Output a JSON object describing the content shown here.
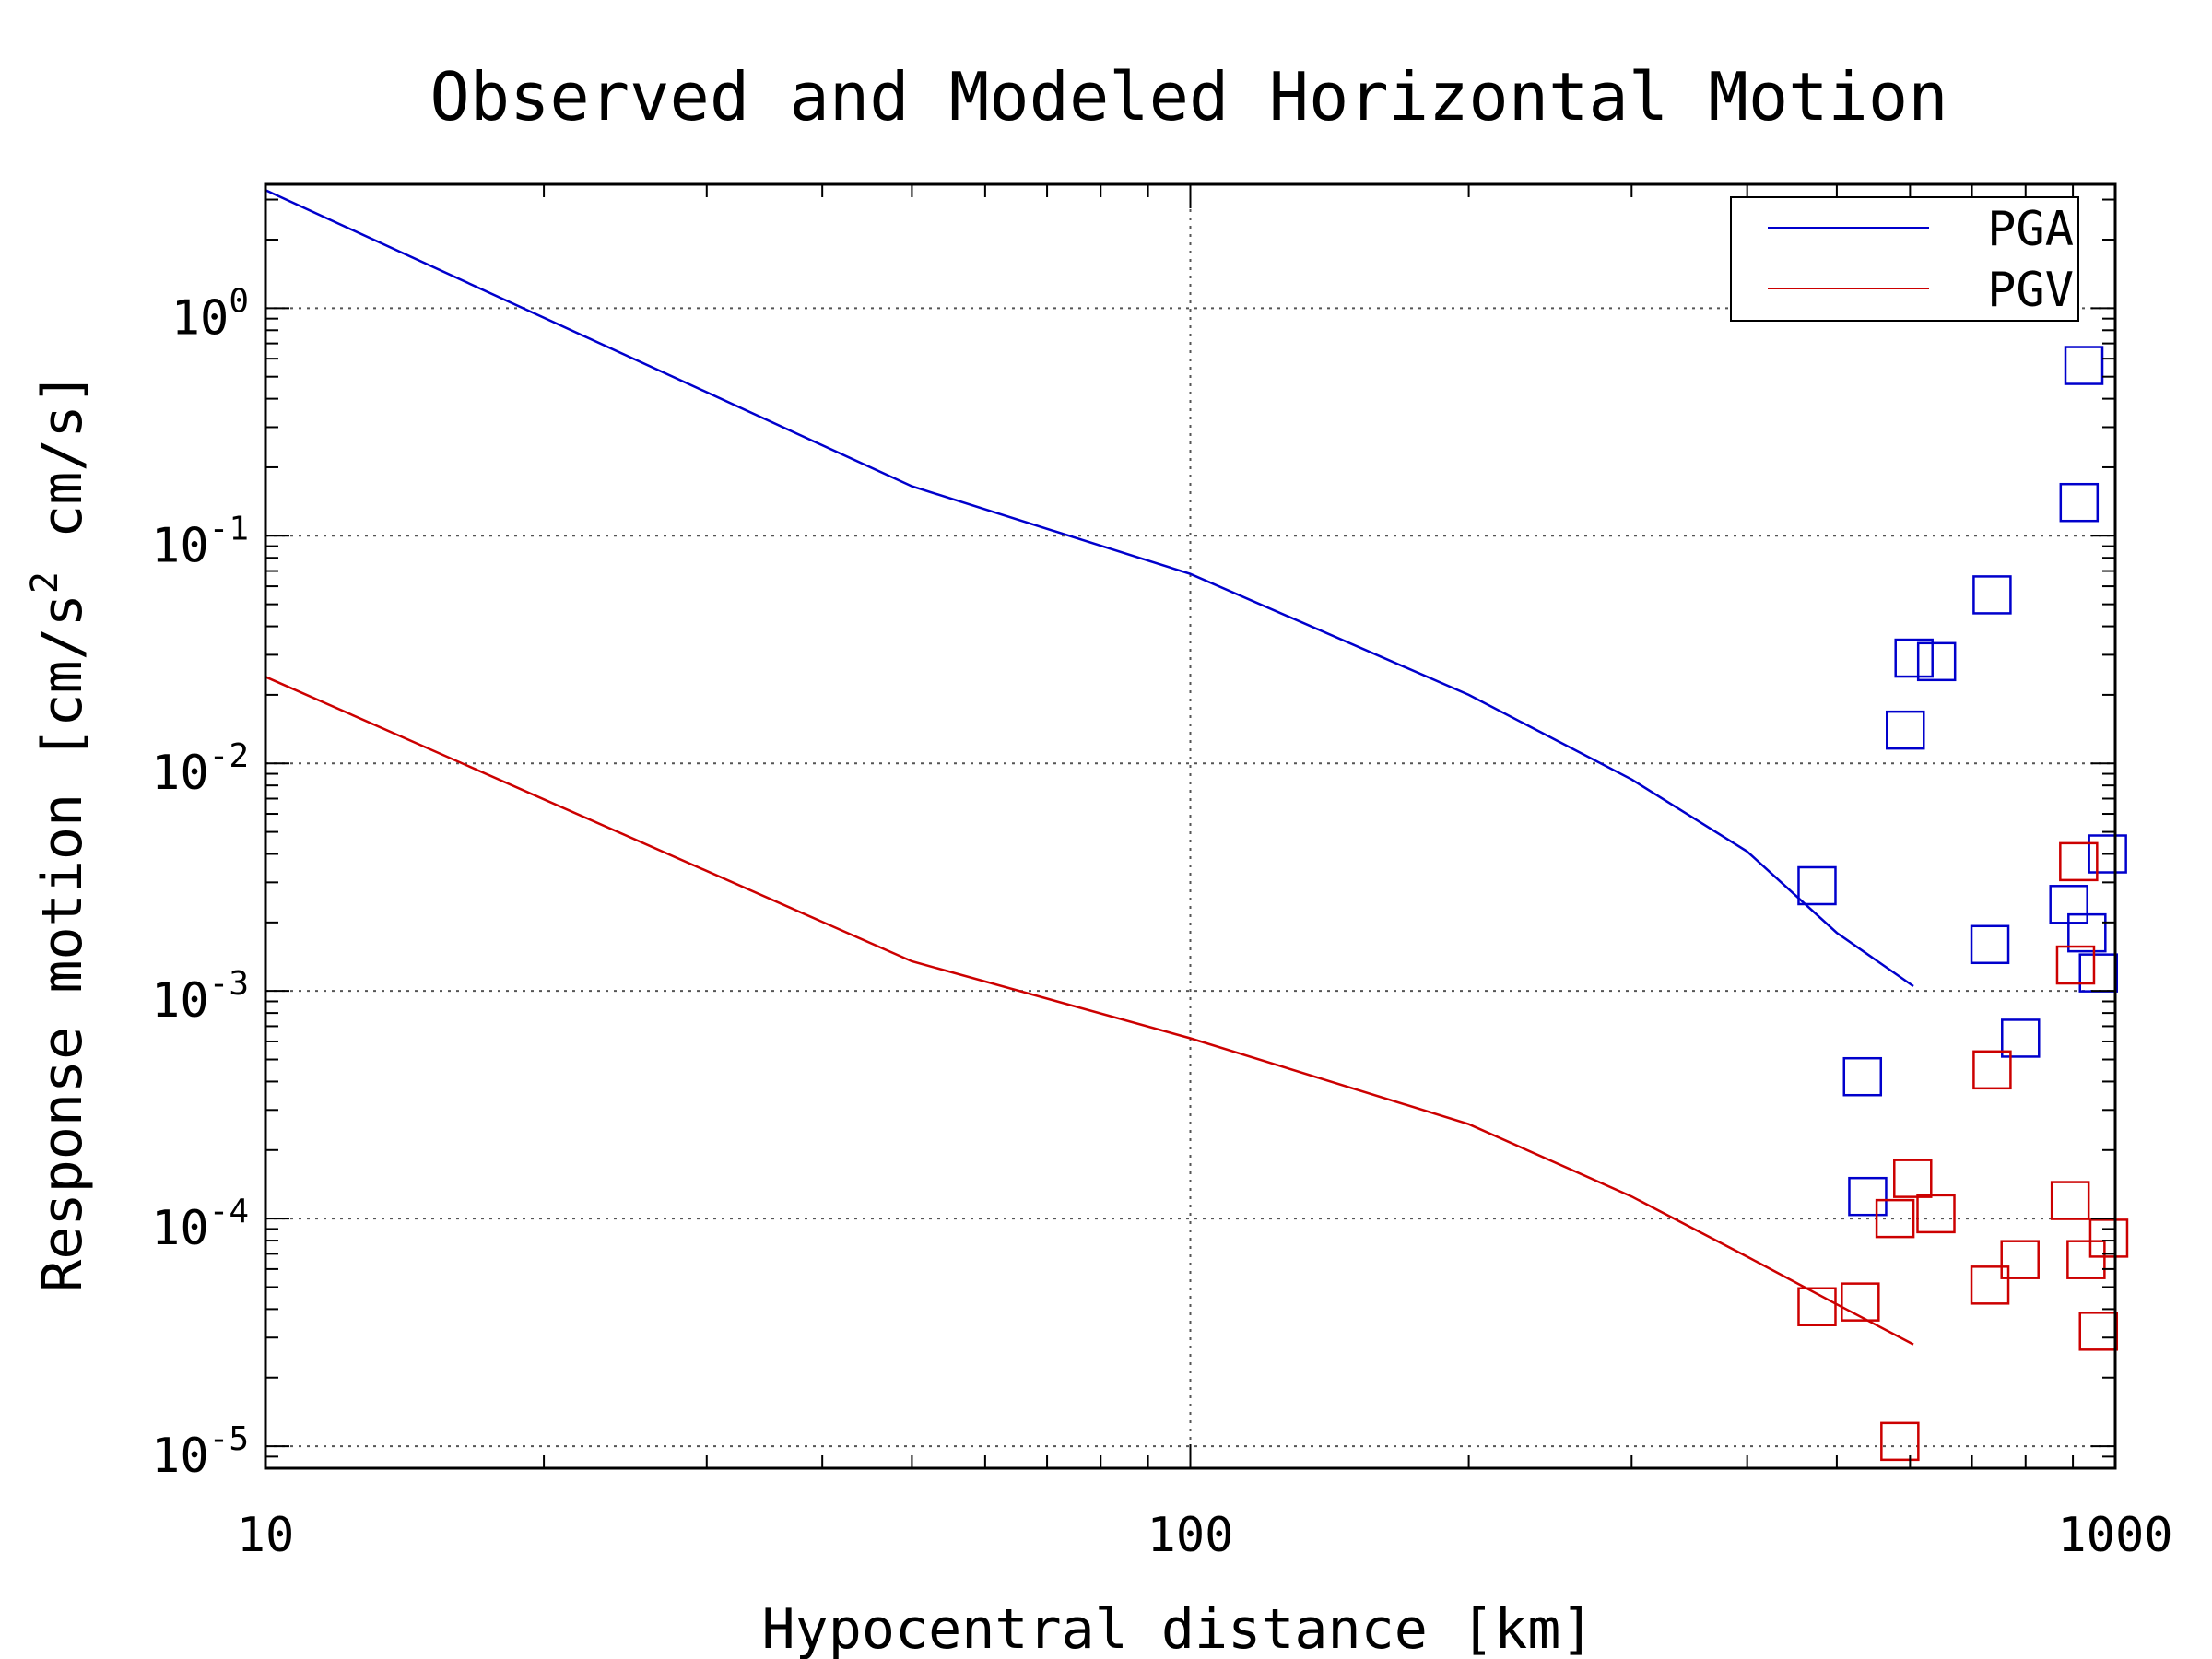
{
  "chart_data": {
    "type": "scatter",
    "title": "Observed and Modeled Horizontal Motion",
    "xlabel": "Hypocentral distance [km]",
    "ylabel_main": "Response motion [cm/s",
    "ylabel_sup": "2",
    "ylabel_tail": " cm/s]",
    "x_scale": "log",
    "y_scale": "log",
    "xlim": [
      10,
      1000
    ],
    "ylim": [
      8e-06,
      3.5
    ],
    "grid": true,
    "legend_position": "top-right",
    "x_ticks": [
      {
        "value": 10,
        "label": "10"
      },
      {
        "value": 100,
        "label": "100"
      },
      {
        "value": 1000,
        "label": "1000"
      }
    ],
    "y_ticks": [
      {
        "value": 1,
        "base": "10",
        "exp": "0"
      },
      {
        "value": 0.1,
        "base": "10",
        "exp": "-1"
      },
      {
        "value": 0.01,
        "base": "10",
        "exp": "-2"
      },
      {
        "value": 0.001,
        "base": "10",
        "exp": "-3"
      },
      {
        "value": 0.0001,
        "base": "10",
        "exp": "-4"
      },
      {
        "value": 1e-05,
        "base": "10",
        "exp": "-5"
      }
    ],
    "series": [
      {
        "name": "PGA",
        "color": "#0000cc",
        "model_line": [
          [
            10,
            3.3
          ],
          [
            50,
            0.165
          ],
          [
            100,
            0.068
          ],
          [
            200,
            0.02
          ],
          [
            300,
            0.0085
          ],
          [
            400,
            0.0041
          ],
          [
            500,
            0.0018
          ],
          [
            605,
            0.00105
          ]
        ],
        "observed": [
          [
            476,
            0.0029
          ],
          [
            533,
            0.00042
          ],
          [
            593,
            0.014
          ],
          [
            606,
            0.029
          ],
          [
            641,
            0.028
          ],
          [
            540,
            0.000125
          ],
          [
            736,
            0.055
          ],
          [
            732,
            0.0016
          ],
          [
            790,
            0.00062
          ],
          [
            891,
            0.0024
          ],
          [
            914,
            0.14
          ],
          [
            925,
            0.56
          ],
          [
            932,
            0.0018
          ],
          [
            959,
            0.0012
          ],
          [
            981,
            0.004
          ]
        ]
      },
      {
        "name": "PGV",
        "color": "#cc0000",
        "model_line": [
          [
            10,
            0.024
          ],
          [
            50,
            0.00135
          ],
          [
            100,
            0.00062
          ],
          [
            200,
            0.00026
          ],
          [
            300,
            0.000125
          ],
          [
            400,
            6.8e-05
          ],
          [
            500,
            4.2e-05
          ],
          [
            605,
            2.8e-05
          ]
        ],
        "observed": [
          [
            476,
            4.1e-05
          ],
          [
            530,
            4.3e-05
          ],
          [
            585,
            1.05e-05
          ],
          [
            578,
            0.0001
          ],
          [
            604,
            0.00015
          ],
          [
            640,
            0.000105
          ],
          [
            732,
            5.1e-05
          ],
          [
            736,
            0.00045
          ],
          [
            789,
            6.6e-05
          ],
          [
            894,
            0.00012
          ],
          [
            906,
            0.0013
          ],
          [
            913,
            0.0037
          ],
          [
            930,
            6.6e-05
          ],
          [
            959,
            3.2e-05
          ],
          [
            984,
            8.2e-05
          ]
        ]
      }
    ]
  }
}
